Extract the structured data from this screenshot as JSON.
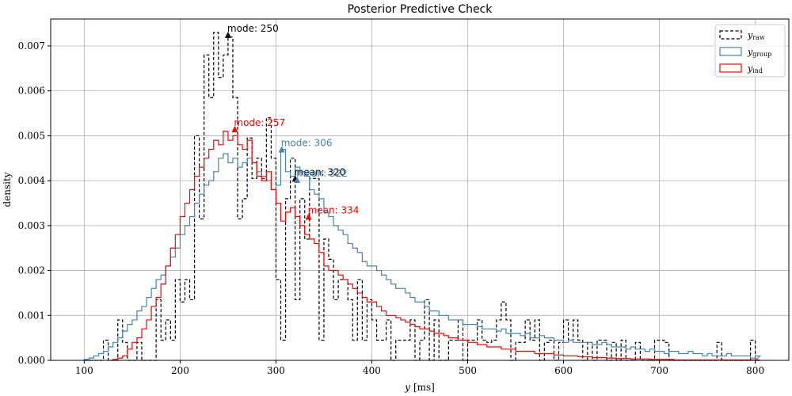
{
  "chart_data": {
    "type": "line",
    "title": "Posterior Predictive Check",
    "xlabel": "y [ms]",
    "xlabel_var": "y",
    "xlabel_unit": "[ms]",
    "ylabel": "density",
    "xlim": [
      65,
      835
    ],
    "ylim": [
      0,
      0.0076
    ],
    "xticks": [
      100,
      200,
      300,
      400,
      500,
      600,
      700,
      800
    ],
    "yticks": [
      0.0,
      0.001,
      0.002,
      0.003,
      0.004,
      0.005,
      0.006,
      0.007
    ],
    "ytick_labels": [
      "0.000",
      "0.001",
      "0.002",
      "0.003",
      "0.004",
      "0.005",
      "0.006",
      "0.007"
    ],
    "grid": true,
    "legend_position": "top-right",
    "bin_width": 5,
    "series": [
      {
        "name": "y_raw",
        "legend_main": "y",
        "legend_sub": "raw",
        "color": "#000000",
        "dash": true,
        "bin_start": 100,
        "values": [
          0,
          0,
          0,
          0,
          0.00045,
          0,
          0,
          0.0009,
          0.0004,
          0,
          0,
          0.0004,
          0,
          0,
          0,
          0.00135,
          0.00045,
          0.0009,
          0.00045,
          0.0018,
          0.0013,
          0.0018,
          0.00135,
          0.005,
          0.00315,
          0.0068,
          0.00585,
          0.0073,
          0.0063,
          0.0068,
          0.0072,
          0.00585,
          0.00315,
          0.0036,
          0.00495,
          0.00405,
          0.0045,
          0.00405,
          0.0054,
          0.0045,
          0.0018,
          0.00045,
          0.0036,
          0.0045,
          0.00135,
          0.0036,
          0.0027,
          0.00405,
          0.00405,
          0.00045,
          0.0027,
          0.00225,
          0.00135,
          0.0018,
          0.0018,
          0.00135,
          0.00045,
          0.0018,
          0.00045,
          0.00135,
          0.0009,
          0.00045,
          0.00045,
          0.0009,
          0,
          0.00045,
          0.00045,
          0.00045,
          0.0009,
          0,
          0.00045,
          0.00135,
          0,
          0.0009,
          0,
          0,
          0.00045,
          0.00045,
          0.0009,
          0,
          0.00045,
          0.00045,
          0.0009,
          0.00045,
          0.0004,
          0.00045,
          0.0009,
          0.0013,
          0.0009,
          0,
          0.0004,
          0.0004,
          0.0009,
          0.00045,
          0.0009,
          0,
          0.0004,
          0.00045,
          0,
          0.0004,
          0.0009,
          0.00045,
          0.0009,
          0.00045,
          0,
          0.0004,
          0,
          0.00045,
          0.00045,
          0,
          0.0004,
          0,
          0.00045,
          0,
          0,
          0.0004,
          0,
          0,
          0,
          0.00045,
          0.00045,
          0.0004,
          0,
          0,
          0,
          0,
          0,
          0,
          0,
          0,
          0,
          0,
          0.0004,
          0,
          0,
          0,
          0,
          0,
          0,
          0.00045,
          0,
          0,
          0,
          0.00045,
          0,
          0,
          0,
          0.00045,
          0.00045,
          0,
          0,
          0,
          0,
          0,
          0.00045,
          0,
          0,
          0.0004,
          0,
          0.0004,
          0,
          0,
          0,
          0,
          0,
          0,
          0,
          0,
          0,
          0,
          0,
          0,
          0,
          0,
          0.00045,
          0.00045,
          0,
          0.00045,
          0,
          0,
          0,
          0,
          0,
          0,
          0,
          0
        ]
      },
      {
        "name": "y_group",
        "legend_main": "y",
        "legend_sub": "group",
        "color": "#4682b4",
        "dash": false,
        "bin_start": 100,
        "values": [
          2e-05,
          5e-05,
          0.0001,
          0.00015,
          0.0002,
          0.0003,
          0.0004,
          0.0005,
          0.00065,
          0.0008,
          0.0009,
          0.0011,
          0.0012,
          0.0014,
          0.0016,
          0.0018,
          0.0019,
          0.0021,
          0.0023,
          0.0025,
          0.0028,
          0.003,
          0.0032,
          0.0035,
          0.0037,
          0.0039,
          0.004,
          0.0042,
          0.0045,
          0.0046,
          0.0044,
          0.0045,
          0.0043,
          0.0044,
          0.0045,
          0.0044,
          0.0042,
          0.0041,
          0.004,
          0.0038,
          0.0039,
          0.0047,
          0.0042,
          0.0041,
          0.0043,
          0.0042,
          0.0041,
          0.0038,
          0.0037,
          0.0036,
          0.0033,
          0.0032,
          0.003,
          0.0029,
          0.0028,
          0.0026,
          0.0025,
          0.0024,
          0.0022,
          0.0021,
          0.0021,
          0.002,
          0.0019,
          0.0018,
          0.0017,
          0.0016,
          0.0016,
          0.0015,
          0.0014,
          0.0013,
          0.0013,
          0.0012,
          0.0011,
          0.0011,
          0.001,
          0.001,
          0.0009,
          0.0009,
          0.0009,
          0.0008,
          0.0008,
          0.0008,
          0.00075,
          0.0007,
          0.0007,
          0.0007,
          0.00065,
          0.0007,
          0.0006,
          0.0006,
          0.0006,
          0.00055,
          0.0006,
          0.0005,
          0.0005,
          0.00055,
          0.0005,
          0.0005,
          0.00045,
          0.00045,
          0.0004,
          0.00045,
          0.0004,
          0.0004,
          0.0004,
          0.0004,
          0.00035,
          0.00035,
          0.0004,
          0.00035,
          0.0003,
          0.0003,
          0.0003,
          0.00025,
          0.0003,
          0.00025,
          0.00025,
          0.0002,
          0.00025,
          0.0002,
          0.0002,
          0.00015,
          0.0002,
          0.0002,
          0.00015,
          0.00015,
          0.0002,
          0.00015,
          0.00015,
          0.0001,
          0.00015,
          0.0001,
          0.0001,
          0.0001,
          0.00015,
          0.0001,
          0.0001,
          0.0001,
          0.0001,
          5e-05,
          0.0001,
          0.0001,
          5e-05,
          0.0001,
          5e-05,
          5e-05,
          5e-05,
          0.0001,
          5e-05,
          5e-05,
          5e-05,
          5e-05,
          5e-05,
          5e-05,
          3e-05,
          5e-05,
          3e-05,
          5e-05,
          3e-05,
          3e-05,
          3e-05,
          3e-05,
          2e-05,
          3e-05,
          2e-05,
          2e-05,
          2e-05,
          2e-05,
          2e-05,
          2e-05,
          1e-05,
          2e-05,
          1e-05,
          1e-05,
          1e-05,
          1e-05,
          1e-05,
          1e-05,
          1e-05,
          1e-05,
          1e-05,
          1e-05,
          1e-05,
          1e-05,
          1e-05,
          1e-05,
          1e-05,
          1e-05,
          1e-05,
          1e-05,
          1e-05,
          1e-05,
          1e-05,
          1e-05,
          1e-05,
          1e-05,
          1e-05,
          1e-05,
          1e-05,
          1e-05,
          1e-05,
          1e-05,
          1e-05,
          1e-05,
          1e-05,
          1e-05,
          1e-05,
          1e-05,
          1e-05,
          1e-05,
          1e-05,
          1e-05,
          1e-05,
          1e-05,
          1e-05,
          1e-05,
          1e-05,
          1e-05,
          1e-05,
          1e-05,
          1e-05,
          1e-05,
          1e-05,
          1e-05,
          1e-05,
          1e-05,
          1e-05,
          1e-05
        ]
      },
      {
        "name": "y_ind",
        "legend_main": "y",
        "legend_sub": "ind",
        "color": "#ff0000",
        "dash": false,
        "bin_start": 130,
        "values": [
          2e-05,
          5e-05,
          0.0001,
          0.00025,
          0.0004,
          0.0005,
          0.0007,
          0.0009,
          0.0012,
          0.0014,
          0.0017,
          0.0021,
          0.0025,
          0.0028,
          0.0032,
          0.0035,
          0.0038,
          0.0041,
          0.0043,
          0.0045,
          0.0047,
          0.0049,
          0.0048,
          0.0051,
          0.0049,
          0.005,
          0.0048,
          0.0047,
          0.0049,
          0.0044,
          0.0041,
          0.004,
          0.0042,
          0.0038,
          0.0035,
          0.0031,
          0.0033,
          0.0034,
          0.0032,
          0.003,
          0.0028,
          0.0027,
          0.0026,
          0.0024,
          0.0021,
          0.002,
          0.002,
          0.0019,
          0.0018,
          0.0017,
          0.0016,
          0.0015,
          0.0014,
          0.0013,
          0.0013,
          0.0012,
          0.0011,
          0.001,
          0.001,
          0.00095,
          0.0009,
          0.00085,
          0.0008,
          0.00075,
          0.0007,
          0.0007,
          0.00065,
          0.0006,
          0.0006,
          0.00055,
          0.0005,
          0.0005,
          0.00045,
          0.00045,
          0.0004,
          0.0004,
          0.00035,
          0.00035,
          0.0003,
          0.0003,
          0.0003,
          0.00025,
          0.00025,
          0.00025,
          0.0002,
          0.0002,
          0.0002,
          0.0002,
          0.00015,
          0.00015,
          0.00015,
          0.00015,
          0.00012,
          0.00012,
          0.0001,
          0.0001,
          0.0001,
          8e-05,
          8e-05,
          8e-05,
          6e-05,
          6e-05,
          6e-05,
          5e-05,
          5e-05,
          4e-05,
          4e-05,
          4e-05,
          3e-05,
          3e-05,
          3e-05,
          3e-05,
          2e-05,
          2e-05,
          2e-05,
          2e-05,
          2e-05,
          1e-05,
          1e-05,
          1e-05,
          1e-05,
          1e-05,
          1e-05,
          1e-05,
          1e-05,
          1e-05,
          1e-05,
          1e-05,
          1e-05,
          1e-05,
          1e-05,
          1e-05,
          1e-05,
          1e-05,
          1e-05,
          1e-05,
          1e-05,
          1e-05,
          1e-05,
          1e-05,
          1e-05,
          1e-05,
          1e-05,
          1e-05,
          1e-05,
          1e-05,
          1e-05,
          1e-05,
          1e-05,
          1e-05,
          1e-05,
          1e-05,
          1e-05,
          1e-05,
          1e-05,
          1e-05,
          1e-05,
          1e-05,
          1e-05,
          1e-05,
          1e-05,
          1e-05,
          1e-05,
          1e-05,
          1e-05,
          1e-05,
          1e-05,
          1e-05,
          1e-05,
          1e-05,
          1e-05,
          1e-05,
          1e-05,
          1e-05,
          1e-05,
          1e-05,
          1e-05,
          1e-05,
          1e-05,
          1e-05,
          1e-05,
          1e-05,
          1e-05,
          1e-05,
          1e-05,
          1e-05,
          1e-05,
          1e-05,
          1e-05,
          1e-05,
          1e-05,
          1e-05,
          1e-05,
          1e-05,
          1e-05,
          1e-05,
          1e-05,
          1e-05,
          1e-05,
          1e-05,
          1e-05,
          1e-05,
          1e-05,
          1e-05,
          1e-05,
          1e-05,
          1e-05,
          1e-05,
          1e-05,
          1e-05,
          1e-05,
          1e-05,
          1e-05,
          1e-05,
          1e-05,
          1e-05,
          1e-05,
          1e-05,
          1e-05,
          1e-05,
          1e-05,
          1e-05,
          1e-05,
          1e-05
        ]
      }
    ],
    "annotations": [
      {
        "label": "mode: 250",
        "x": 250,
        "y": 0.00725,
        "color": "#000000"
      },
      {
        "label": "mode: 257",
        "x": 257,
        "y": 0.00515,
        "color": "#ff0000"
      },
      {
        "label": "mode: 306",
        "x": 306,
        "y": 0.0047,
        "color": "#4682b4"
      },
      {
        "label": "mean: 320",
        "x": 320,
        "y": 0.00405,
        "color": "#000000"
      },
      {
        "label": "mean: 322",
        "x": 322,
        "y": 0.00402,
        "color": "#4682b4"
      },
      {
        "label": "mean: 334",
        "x": 334,
        "y": 0.0032,
        "color": "#ff0000"
      }
    ]
  }
}
